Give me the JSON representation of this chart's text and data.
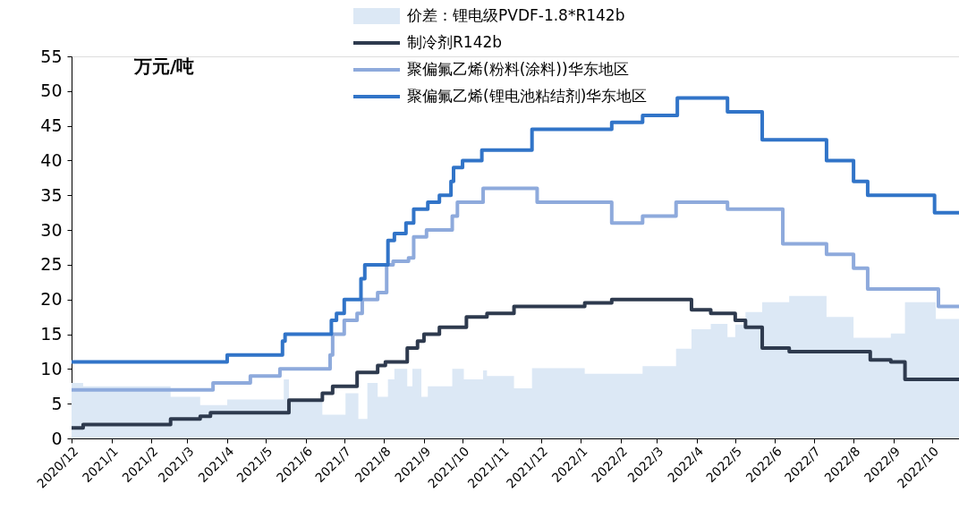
{
  "chart_data": {
    "type": "step",
    "ylabel": "万元/吨",
    "legend": "top",
    "xlim": [
      "2020-12-01",
      "2022-10-22"
    ],
    "ylim": [
      0,
      55
    ],
    "yticks": [
      0,
      5,
      10,
      15,
      20,
      25,
      30,
      35,
      40,
      45,
      50,
      55
    ],
    "xticks": [
      {
        "value": "2020-12-01",
        "label": "2020/12"
      },
      {
        "value": "2021-01-01",
        "label": "2021/1"
      },
      {
        "value": "2021-02-01",
        "label": "2021/2"
      },
      {
        "value": "2021-03-01",
        "label": "2021/3"
      },
      {
        "value": "2021-04-01",
        "label": "2021/4"
      },
      {
        "value": "2021-05-01",
        "label": "2021/5"
      },
      {
        "value": "2021-06-01",
        "label": "2021/6"
      },
      {
        "value": "2021-07-01",
        "label": "2021/7"
      },
      {
        "value": "2021-08-01",
        "label": "2021/8"
      },
      {
        "value": "2021-09-01",
        "label": "2021/9"
      },
      {
        "value": "2021-10-01",
        "label": "2021/10"
      },
      {
        "value": "2021-11-01",
        "label": "2021/11"
      },
      {
        "value": "2021-12-01",
        "label": "2021/12"
      },
      {
        "value": "2022-01-01",
        "label": "2022/1"
      },
      {
        "value": "2022-02-01",
        "label": "2022/2"
      },
      {
        "value": "2022-03-01",
        "label": "2022/3"
      },
      {
        "value": "2022-04-01",
        "label": "2022/4"
      },
      {
        "value": "2022-05-01",
        "label": "2022/5"
      },
      {
        "value": "2022-06-01",
        "label": "2022/6"
      },
      {
        "value": "2022-07-01",
        "label": "2022/7"
      },
      {
        "value": "2022-08-01",
        "label": "2022/8"
      },
      {
        "value": "2022-09-01",
        "label": "2022/9"
      },
      {
        "value": "2022-10-01",
        "label": "2022/10"
      }
    ],
    "grid": false,
    "marker": "none",
    "line_style": "solid",
    "series": [
      {
        "name": "价差：锂电级PVDF-1.8*R142b",
        "type": "area",
        "color": "#dce8f5",
        "x": [
          "2020-12-01",
          "2020-12-10",
          "2021-02-16",
          "2021-03-11",
          "2021-04-01",
          "2021-05-15",
          "2021-05-19",
          "2021-06-14",
          "2021-07-02",
          "2021-07-12",
          "2021-07-19",
          "2021-07-27",
          "2021-08-04",
          "2021-08-09",
          "2021-08-19",
          "2021-08-23",
          "2021-08-30",
          "2021-09-04",
          "2021-09-23",
          "2021-10-02",
          "2021-10-17",
          "2021-10-20",
          "2021-11-10",
          "2021-11-24",
          "2022-01-04",
          "2022-02-18",
          "2022-03-16",
          "2022-03-28",
          "2022-04-12",
          "2022-04-25",
          "2022-05-01",
          "2022-05-09",
          "2022-05-22",
          "2022-06-12",
          "2022-07-11",
          "2022-08-01",
          "2022-08-14",
          "2022-08-30",
          "2022-09-10",
          "2022-10-04",
          "2022-10-22"
        ],
        "values": [
          8,
          7.5,
          6,
          4.8,
          5.6,
          8.5,
          5.6,
          3.4,
          6.5,
          2.8,
          8,
          6,
          8.5,
          10,
          7.5,
          10,
          6,
          7.5,
          10,
          8.5,
          9.8,
          9,
          7.2,
          10.1,
          9.3,
          10.4,
          12.9,
          15.7,
          16.5,
          14.6,
          16.4,
          18.2,
          19.6,
          20.5,
          17.5,
          14.5,
          14.5,
          15.1,
          19.6,
          17.2,
          17.2
        ]
      },
      {
        "name": "制冷剂R142b",
        "type": "step",
        "color": "#2e3a4e",
        "x": [
          "2020-12-01",
          "2020-12-10",
          "2021-02-16",
          "2021-03-11",
          "2021-03-19",
          "2021-05-19",
          "2021-06-14",
          "2021-06-22",
          "2021-07-11",
          "2021-07-27",
          "2021-08-02",
          "2021-08-19",
          "2021-08-27",
          "2021-09-01",
          "2021-09-13",
          "2021-10-04",
          "2021-10-20",
          "2021-11-10",
          "2022-01-04",
          "2022-01-25",
          "2022-03-28",
          "2022-04-12",
          "2022-05-01",
          "2022-05-09",
          "2022-05-22",
          "2022-06-12",
          "2022-08-14",
          "2022-08-30",
          "2022-09-10",
          "2022-10-22"
        ],
        "values": [
          1.5,
          2,
          2.8,
          3.2,
          3.7,
          5.5,
          6.5,
          7.5,
          9.5,
          10.5,
          11,
          13,
          14,
          15,
          16,
          17.5,
          18,
          19,
          19.5,
          20,
          18.5,
          18,
          17,
          16,
          13,
          12.5,
          11.3,
          11,
          8.5,
          8.5
        ]
      },
      {
        "name": "聚偏氟乙烯(粉料(涂料))华东地区",
        "type": "step",
        "color": "#8eaadc",
        "x": [
          "2020-12-01",
          "2021-03-21",
          "2021-04-19",
          "2021-05-12",
          "2021-06-20",
          "2021-06-22",
          "2021-07-01",
          "2021-07-11",
          "2021-07-15",
          "2021-07-27",
          "2021-08-03",
          "2021-08-08",
          "2021-08-20",
          "2021-08-24",
          "2021-09-03",
          "2021-09-23",
          "2021-09-27",
          "2021-10-17",
          "2021-11-28",
          "2022-01-25",
          "2022-02-18",
          "2022-03-16",
          "2022-04-25",
          "2022-06-07",
          "2022-07-11",
          "2022-08-01",
          "2022-08-12",
          "2022-10-06",
          "2022-10-22"
        ],
        "values": [
          7,
          8,
          9,
          10,
          12,
          15,
          17,
          18,
          20,
          21,
          25,
          25.5,
          26,
          29,
          30,
          32,
          34,
          36,
          34,
          31,
          32,
          34,
          33,
          28,
          26.5,
          24.5,
          21.5,
          19,
          19
        ]
      },
      {
        "name": "聚偏氟乙烯(锂电池粘结剂)华东地区",
        "type": "step",
        "color": "#3174c8",
        "x": [
          "2020-12-01",
          "2021-04-01",
          "2021-05-14",
          "2021-05-16",
          "2021-06-21",
          "2021-06-25",
          "2021-07-01",
          "2021-07-14",
          "2021-07-17",
          "2021-08-04",
          "2021-08-09",
          "2021-08-18",
          "2021-08-24",
          "2021-09-04",
          "2021-09-13",
          "2021-09-22",
          "2021-09-24",
          "2021-10-01",
          "2021-10-16",
          "2021-11-24",
          "2022-01-25",
          "2022-02-18",
          "2022-03-17",
          "2022-04-25",
          "2022-05-22",
          "2022-07-11",
          "2022-08-01",
          "2022-08-12",
          "2022-10-03",
          "2022-10-22"
        ],
        "values": [
          11,
          12,
          14,
          15,
          17,
          18,
          20,
          23,
          25,
          28.5,
          29.5,
          31,
          33,
          34,
          35,
          37,
          39,
          40,
          41.5,
          44.5,
          45.5,
          46.5,
          49,
          47,
          43,
          40,
          37,
          35,
          32.5,
          32.5
        ]
      }
    ]
  }
}
